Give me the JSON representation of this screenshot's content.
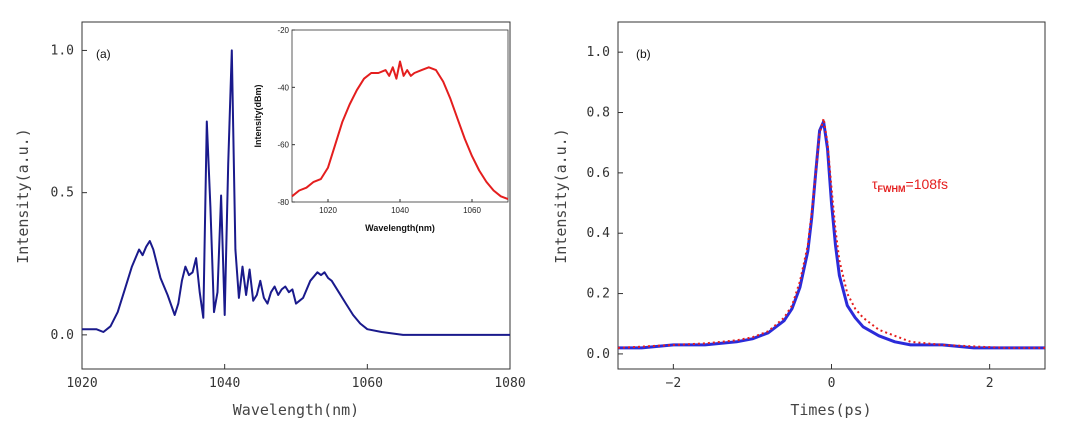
{
  "chart_data": [
    {
      "type": "line",
      "panel_label": "(a)",
      "xlabel": "Wavelength(nm)",
      "ylabel": "Intensity(a.u.)",
      "xlim": [
        1020,
        1080
      ],
      "ylim": [
        -0.12,
        1.1
      ],
      "xticks": [
        1020,
        1040,
        1060,
        1080
      ],
      "xtick_labels": [
        "1020",
        "1040",
        "1060",
        "1080"
      ],
      "yticks": [
        0,
        0.5,
        1.0
      ],
      "ytick_labels": [
        "0.0",
        "0.5",
        "1.0"
      ],
      "grid": false,
      "series": [
        {
          "color": "#1a1a8c",
          "x": [
            1020,
            1022,
            1023,
            1024,
            1025,
            1026,
            1027,
            1028,
            1028.5,
            1029,
            1029.5,
            1030,
            1030.5,
            1031,
            1032,
            1033,
            1033.5,
            1034,
            1034.5,
            1035,
            1035.5,
            1036,
            1036.5,
            1037,
            1037.5,
            1038,
            1038.5,
            1039,
            1039.5,
            1040,
            1040.5,
            1041,
            1041.5,
            1042,
            1042.5,
            1043,
            1043.5,
            1044,
            1044.5,
            1045,
            1045.5,
            1046,
            1046.5,
            1047,
            1047.5,
            1048,
            1048.5,
            1049,
            1049.5,
            1050,
            1050.5,
            1051,
            1052,
            1053,
            1053.5,
            1054,
            1054.5,
            1055,
            1056,
            1057,
            1058,
            1059,
            1060,
            1062,
            1065,
            1070,
            1075,
            1080
          ],
          "y": [
            0.02,
            0.02,
            0.01,
            0.03,
            0.08,
            0.16,
            0.24,
            0.3,
            0.28,
            0.31,
            0.33,
            0.3,
            0.25,
            0.2,
            0.14,
            0.07,
            0.11,
            0.19,
            0.24,
            0.21,
            0.22,
            0.27,
            0.15,
            0.06,
            0.75,
            0.45,
            0.08,
            0.15,
            0.49,
            0.07,
            0.6,
            1.0,
            0.3,
            0.13,
            0.24,
            0.14,
            0.23,
            0.12,
            0.14,
            0.19,
            0.13,
            0.11,
            0.15,
            0.17,
            0.14,
            0.16,
            0.17,
            0.15,
            0.16,
            0.11,
            0.12,
            0.13,
            0.19,
            0.22,
            0.21,
            0.22,
            0.2,
            0.19,
            0.15,
            0.11,
            0.07,
            0.04,
            0.02,
            0.01,
            0.0,
            0.0,
            0.0,
            0.0
          ]
        }
      ],
      "inset": {
        "type": "line",
        "xlabel": "Wavelength(nm)",
        "ylabel": "Intensity(dBm)",
        "xlim": [
          1010,
          1070
        ],
        "ylim": [
          -80,
          -20
        ],
        "xticks": [
          1020,
          1040,
          1060
        ],
        "xtick_labels": [
          "1020",
          "1040",
          "1060"
        ],
        "yticks": [
          -80,
          -60,
          -40,
          -20
        ],
        "ytick_labels": [
          "-80",
          "-60",
          "-40",
          "-20"
        ],
        "series": [
          {
            "color": "#e41e1e",
            "x": [
              1010,
              1012,
              1014,
              1016,
              1018,
              1020,
              1022,
              1024,
              1026,
              1028,
              1030,
              1032,
              1034,
              1036,
              1037,
              1038,
              1039,
              1040,
              1041,
              1042,
              1043,
              1044,
              1046,
              1048,
              1050,
              1052,
              1054,
              1056,
              1058,
              1060,
              1062,
              1064,
              1066,
              1068,
              1070
            ],
            "y": [
              -78,
              -76,
              -75,
              -73,
              -72,
              -68,
              -60,
              -52,
              -46,
              -41,
              -37,
              -35,
              -35,
              -34,
              -36,
              -33,
              -37,
              -31,
              -36,
              -34,
              -36,
              -35,
              -34,
              -33,
              -34,
              -38,
              -44,
              -51,
              -58,
              -64,
              -69,
              -73,
              -76,
              -78,
              -79
            ]
          }
        ]
      }
    },
    {
      "type": "line",
      "panel_label": "(b)",
      "xlabel": "Times(ps)",
      "ylabel": "Intensity(a.u.)",
      "xlim": [
        -2.7,
        2.7
      ],
      "ylim": [
        -0.05,
        1.1
      ],
      "xticks": [
        -2,
        0,
        2
      ],
      "xtick_labels": [
        "−2",
        "0",
        "2"
      ],
      "yticks": [
        0,
        0.2,
        0.4,
        0.6,
        0.8,
        1.0
      ],
      "ytick_labels": [
        "0.0",
        "0.2",
        "0.4",
        "0.6",
        "0.8",
        "1.0"
      ],
      "grid": false,
      "annotation": {
        "text": "τ",
        "sub": "FWHM",
        "after": "=108fs"
      },
      "series": [
        {
          "color": "#2b2bd9",
          "style": "solid",
          "x": [
            -2.7,
            -2.4,
            -2.0,
            -1.6,
            -1.2,
            -1.0,
            -0.8,
            -0.6,
            -0.5,
            -0.4,
            -0.3,
            -0.25,
            -0.2,
            -0.15,
            -0.1,
            -0.05,
            0,
            0.05,
            0.1,
            0.2,
            0.3,
            0.4,
            0.6,
            0.8,
            1.0,
            1.4,
            1.8,
            2.2,
            2.7
          ],
          "y": [
            0.02,
            0.02,
            0.03,
            0.03,
            0.04,
            0.05,
            0.07,
            0.11,
            0.15,
            0.22,
            0.34,
            0.45,
            0.6,
            0.74,
            0.77,
            0.68,
            0.5,
            0.36,
            0.26,
            0.16,
            0.12,
            0.09,
            0.06,
            0.04,
            0.03,
            0.03,
            0.02,
            0.02,
            0.02
          ]
        },
        {
          "color": "#e41e1e",
          "style": "dotted",
          "x": [
            -2.7,
            -2.0,
            -1.6,
            -1.2,
            -1.0,
            -0.8,
            -0.6,
            -0.5,
            -0.4,
            -0.3,
            -0.25,
            -0.2,
            -0.15,
            -0.1,
            -0.05,
            0,
            0.05,
            0.1,
            0.2,
            0.3,
            0.4,
            0.6,
            0.8,
            1.0,
            1.4,
            1.8,
            2.2,
            2.7
          ],
          "y": [
            0.02,
            0.03,
            0.035,
            0.045,
            0.055,
            0.075,
            0.12,
            0.16,
            0.24,
            0.36,
            0.47,
            0.6,
            0.73,
            0.78,
            0.7,
            0.55,
            0.41,
            0.31,
            0.2,
            0.15,
            0.12,
            0.08,
            0.06,
            0.04,
            0.03,
            0.025,
            0.02,
            0.02
          ]
        }
      ]
    }
  ]
}
